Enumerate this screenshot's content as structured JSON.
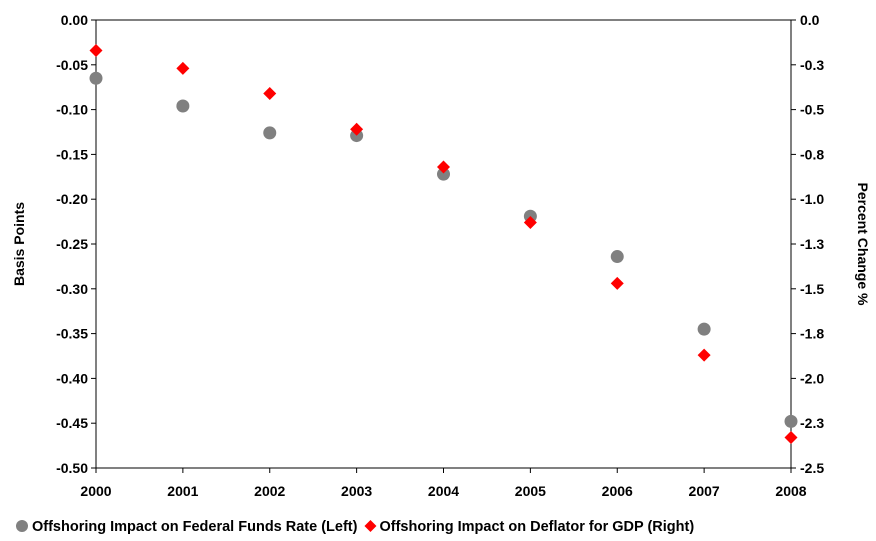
{
  "chart_data": {
    "type": "scatter",
    "x": [
      2000,
      2001,
      2002,
      2003,
      2004,
      2005,
      2006,
      2007,
      2008
    ],
    "x_tick_labels": [
      "2000",
      "2001",
      "2002",
      "2003",
      "2004",
      "2005",
      "2006",
      "2007",
      "2008"
    ],
    "xlim": [
      2000,
      2008
    ],
    "ylabel_left": "Basis Points",
    "ylabel_right": "Percent Change %",
    "ylim_left": [
      -0.5,
      0.0
    ],
    "ylim_right": [
      -2.5,
      0.0
    ],
    "left_tick_labels": [
      "0.00",
      "-0.05",
      "-0.10",
      "-0.15",
      "-0.20",
      "-0.25",
      "-0.30",
      "-0.35",
      "-0.40",
      "-0.45",
      "-0.50"
    ],
    "right_tick_labels": [
      "0.0",
      "-0.3",
      "-0.5",
      "-0.8",
      "-1.0",
      "-1.3",
      "-1.5",
      "-1.8",
      "-2.0",
      "-2.3",
      "-2.5"
    ],
    "grid": false,
    "legend_position": "bottom",
    "series": [
      {
        "name": "Offshoring Impact on Federal Funds Rate (Left)",
        "axis": "left",
        "marker": "circle",
        "color": "#808080",
        "values": [
          -0.065,
          -0.096,
          -0.126,
          -0.129,
          -0.172,
          -0.219,
          -0.264,
          -0.345,
          -0.448
        ]
      },
      {
        "name": "Offshoring Impact on Deflator for GDP (Right)",
        "axis": "right",
        "marker": "diamond",
        "color": "#ff0000",
        "values": [
          -0.17,
          -0.27,
          -0.41,
          -0.61,
          -0.82,
          -1.13,
          -1.47,
          -1.87,
          -2.33
        ]
      }
    ]
  }
}
